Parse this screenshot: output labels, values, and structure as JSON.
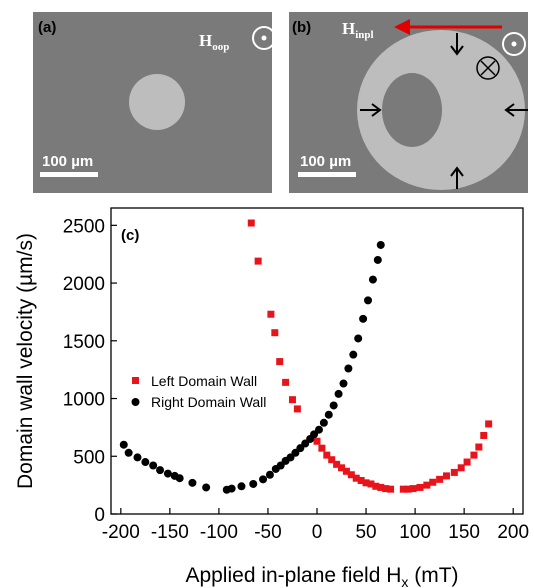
{
  "panels": {
    "a": {
      "label": "(a)",
      "field_main": "H",
      "field_sub": "oop",
      "scale_bar": "100 µm"
    },
    "b": {
      "label": "(b)",
      "field_main": "H",
      "field_sub": "inpl",
      "scale_bar": "100 µm"
    }
  },
  "colors": {
    "micrograph_bg": "#7a7a7a",
    "domain": "#bdbdbd",
    "left_wall": "#e8141c",
    "right_wall": "#000000",
    "field_arrow": "#e00000"
  },
  "chart_data": {
    "type": "scatter",
    "panel_label": "(c)",
    "xlabel_main": "Applied in-plane field H",
    "xlabel_sub": "x",
    "xlabel_unit": " (mT)",
    "ylabel": "Domain wall velocity (µm/s)",
    "xlim": [
      -210,
      210
    ],
    "ylim": [
      0,
      2650
    ],
    "xticks": [
      -200,
      -150,
      -100,
      -50,
      0,
      50,
      100,
      150,
      200
    ],
    "yticks": [
      0,
      500,
      1000,
      1500,
      2000,
      2500
    ],
    "grid": false,
    "legend_position": "center-left",
    "series": [
      {
        "name": "Left Domain Wall",
        "marker": "square",
        "color": "#e8141c",
        "x": [
          -67,
          -60,
          -47,
          -43,
          -38,
          -32,
          -25,
          -20,
          0,
          5,
          10,
          15,
          20,
          25,
          30,
          35,
          40,
          45,
          50,
          55,
          60,
          65,
          70,
          75,
          88,
          93,
          98,
          105,
          112,
          118,
          125,
          132,
          140,
          147,
          153,
          160,
          165,
          170,
          175
        ],
        "y": [
          2520,
          2190,
          1730,
          1570,
          1320,
          1140,
          990,
          910,
          630,
          570,
          510,
          470,
          430,
          400,
          370,
          340,
          310,
          290,
          270,
          260,
          240,
          230,
          220,
          215,
          215,
          215,
          220,
          230,
          250,
          275,
          300,
          330,
          360,
          400,
          450,
          510,
          580,
          680,
          780
        ]
      },
      {
        "name": "Right Domain Wall",
        "marker": "circle",
        "color": "#000000",
        "x": [
          -197,
          -192,
          -183,
          -175,
          -167,
          -160,
          -152,
          -145,
          -140,
          -127,
          -113,
          -92,
          -87,
          -77,
          -65,
          -55,
          -48,
          -42,
          -37,
          -32,
          -27,
          -22,
          -17,
          -12,
          -7,
          -3,
          2,
          7,
          12,
          17,
          22,
          27,
          32,
          37,
          42,
          47,
          52,
          57,
          62,
          65
        ],
        "y": [
          600,
          530,
          490,
          450,
          420,
          380,
          350,
          330,
          310,
          270,
          230,
          210,
          220,
          240,
          260,
          300,
          340,
          390,
          420,
          460,
          490,
          530,
          570,
          610,
          650,
          690,
          730,
          790,
          860,
          940,
          1040,
          1130,
          1260,
          1380,
          1520,
          1690,
          1850,
          2030,
          2200,
          2330
        ]
      }
    ]
  }
}
